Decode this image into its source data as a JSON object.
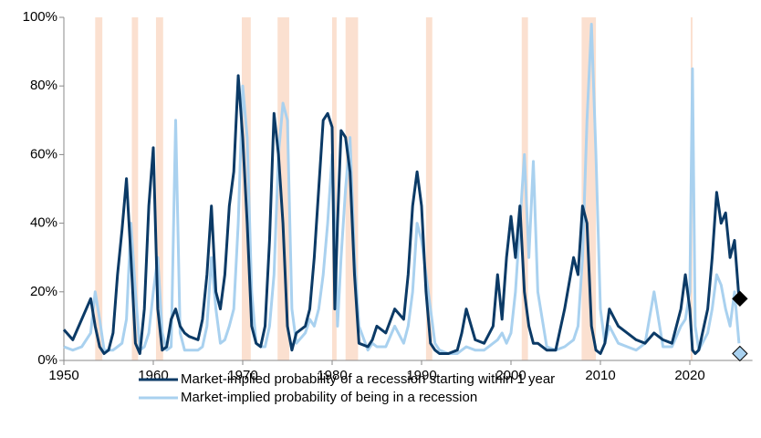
{
  "chart_data": {
    "type": "line",
    "x": [
      1950,
      1951,
      1952,
      1953,
      1953.5,
      1954,
      1954.5,
      1955,
      1955.5,
      1956,
      1956.5,
      1957,
      1957.5,
      1958,
      1958.5,
      1959,
      1959.5,
      1960,
      1960.5,
      1961,
      1961.5,
      1962,
      1962.5,
      1963,
      1963.5,
      1964,
      1965,
      1965.5,
      1966,
      1966.5,
      1967,
      1967.5,
      1968,
      1968.5,
      1969,
      1969.5,
      1970,
      1970.5,
      1971,
      1971.5,
      1972,
      1972.5,
      1973,
      1973.5,
      1974,
      1974.5,
      1975,
      1975.5,
      1976,
      1977,
      1977.5,
      1978,
      1978.5,
      1979,
      1979.5,
      1980,
      1980.3,
      1980.6,
      1981,
      1981.5,
      1982,
      1982.5,
      1983,
      1984,
      1984.5,
      1985,
      1986,
      1987,
      1988,
      1988.5,
      1989,
      1989.5,
      1990,
      1990.5,
      1991,
      1991.5,
      1992,
      1993,
      1994,
      1994.5,
      1995,
      1996,
      1997,
      1998,
      1998.5,
      1999,
      1999.5,
      2000,
      2000.5,
      2001,
      2001.5,
      2002,
      2002.5,
      2003,
      2004,
      2005,
      2006,
      2007,
      2007.5,
      2008,
      2008.5,
      2009,
      2009.5,
      2010,
      2010.5,
      2011,
      2012,
      2013,
      2014,
      2015,
      2016,
      2017,
      2018,
      2019,
      2019.5,
      2020,
      2020.3,
      2020.6,
      2021,
      2022,
      2022.5,
      2023,
      2023.5,
      2024,
      2024.5,
      2025,
      2025.5
    ],
    "series": [
      {
        "name": "Market-implied probability of a recession starting within 1 year",
        "color": "#0b3a66",
        "values": [
          9,
          6,
          12,
          18,
          10,
          4,
          2,
          3,
          8,
          25,
          38,
          53,
          30,
          5,
          2,
          15,
          45,
          62,
          15,
          3,
          4,
          12,
          15,
          10,
          8,
          7,
          6,
          12,
          25,
          45,
          20,
          15,
          25,
          45,
          55,
          83,
          65,
          40,
          10,
          5,
          4,
          10,
          35,
          72,
          60,
          40,
          10,
          3,
          8,
          10,
          15,
          30,
          50,
          70,
          72,
          68,
          15,
          40,
          67,
          65,
          55,
          25,
          5,
          4,
          6,
          10,
          8,
          15,
          12,
          25,
          45,
          55,
          45,
          20,
          5,
          3,
          2,
          2,
          3,
          8,
          15,
          6,
          5,
          10,
          25,
          12,
          30,
          42,
          30,
          45,
          20,
          10,
          5,
          5,
          3,
          3,
          15,
          30,
          25,
          45,
          40,
          10,
          3,
          2,
          5,
          15,
          10,
          8,
          6,
          5,
          8,
          6,
          5,
          15,
          25,
          15,
          3,
          2,
          3,
          15,
          30,
          49,
          40,
          43,
          30,
          35,
          18
        ],
        "latest": {
          "x": 2025.6,
          "value": 18
        }
      },
      {
        "name": "Market-implied probability of being in a recession",
        "color": "#a9d1ef",
        "values": [
          4,
          3,
          4,
          8,
          20,
          12,
          3,
          3,
          3,
          4,
          5,
          12,
          40,
          20,
          3,
          4,
          8,
          20,
          30,
          8,
          3,
          4,
          70,
          8,
          3,
          3,
          3,
          4,
          10,
          30,
          15,
          5,
          6,
          10,
          15,
          40,
          80,
          65,
          20,
          5,
          4,
          4,
          10,
          25,
          60,
          75,
          70,
          15,
          5,
          8,
          12,
          10,
          15,
          25,
          40,
          60,
          40,
          10,
          30,
          50,
          65,
          30,
          10,
          3,
          5,
          4,
          4,
          10,
          5,
          10,
          20,
          40,
          35,
          25,
          15,
          5,
          3,
          2,
          2,
          3,
          4,
          3,
          3,
          5,
          6,
          8,
          5,
          8,
          20,
          40,
          60,
          30,
          58,
          20,
          4,
          3,
          4,
          6,
          10,
          30,
          70,
          98,
          60,
          15,
          5,
          10,
          5,
          4,
          3,
          5,
          20,
          4,
          4,
          10,
          12,
          20,
          85,
          10,
          3,
          8,
          15,
          25,
          22,
          15,
          10,
          20,
          5
        ],
        "latest": {
          "x": 2025.6,
          "value": 2
        }
      }
    ],
    "recessions": [
      [
        1953.5,
        1954.3
      ],
      [
        1957.6,
        1958.3
      ],
      [
        1960.3,
        1961.1
      ],
      [
        1969.9,
        1970.9
      ],
      [
        1973.9,
        1975.2
      ],
      [
        1980.0,
        1980.5
      ],
      [
        1981.5,
        1982.9
      ],
      [
        1990.5,
        1991.2
      ],
      [
        2001.2,
        2001.9
      ],
      [
        2007.9,
        2009.5
      ],
      [
        2020.1,
        2020.3
      ]
    ],
    "recession_color": "#fbe0d0",
    "xlim": [
      1950,
      2027
    ],
    "xticks": [
      1950,
      1960,
      1970,
      1980,
      1990,
      2000,
      2010,
      2020
    ],
    "ylim": [
      0,
      100
    ],
    "yticks": [
      {
        "value": 0,
        "label": "0%"
      },
      {
        "value": 20,
        "label": "20%"
      },
      {
        "value": 40,
        "label": "40%"
      },
      {
        "value": 60,
        "label": "60%"
      },
      {
        "value": 80,
        "label": "80%"
      },
      {
        "value": 100,
        "label": "100%"
      }
    ]
  }
}
